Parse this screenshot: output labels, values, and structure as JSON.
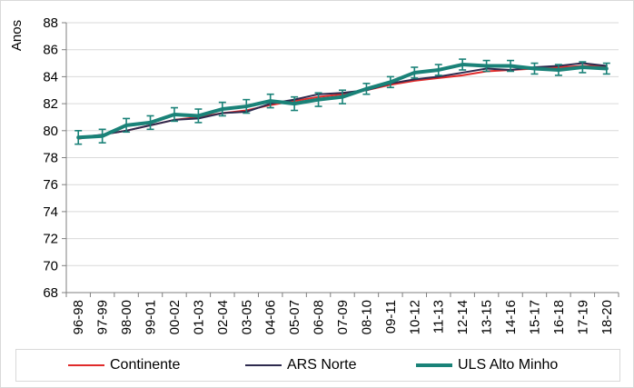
{
  "chart_data": {
    "type": "line",
    "title": "",
    "xlabel": "",
    "ylabel": "Anos",
    "ylim": [
      68,
      88
    ],
    "yticks": [
      68,
      70,
      72,
      74,
      76,
      78,
      80,
      82,
      84,
      86,
      88
    ],
    "grid": "horizontal",
    "legend": "bottom",
    "categories": [
      "96-98",
      "97-99",
      "98-00",
      "99-01",
      "00-02",
      "01-03",
      "02-04",
      "03-05",
      "04-06",
      "05-07",
      "06-08",
      "07-09",
      "08-10",
      "09-11",
      "10-12",
      "11-13",
      "12-14",
      "13-15",
      "14-16",
      "15-17",
      "16-18",
      "17-19",
      "18-20"
    ],
    "series": [
      {
        "name": "Continente",
        "color": "#e02b2b",
        "values": [
          79.4,
          79.7,
          80.0,
          80.4,
          80.8,
          81.0,
          81.3,
          81.5,
          81.9,
          82.2,
          82.5,
          82.7,
          83.0,
          83.4,
          83.7,
          83.9,
          84.1,
          84.4,
          84.5,
          84.6,
          84.7,
          84.8,
          84.8
        ]
      },
      {
        "name": "ARS Norte",
        "color": "#2e2b4f",
        "values": [
          79.5,
          79.7,
          80.0,
          80.4,
          80.8,
          80.9,
          81.3,
          81.4,
          82.0,
          82.3,
          82.7,
          82.8,
          83.0,
          83.5,
          83.8,
          84.0,
          84.3,
          84.6,
          84.5,
          84.7,
          84.8,
          85.0,
          84.8
        ]
      },
      {
        "name": "ULS Alto Minho",
        "color": "#1a8278",
        "values": [
          79.5,
          79.6,
          80.4,
          80.6,
          81.2,
          81.1,
          81.6,
          81.8,
          82.2,
          82.0,
          82.3,
          82.5,
          83.1,
          83.6,
          84.3,
          84.5,
          84.9,
          84.8,
          84.8,
          84.6,
          84.5,
          84.7,
          84.6
        ],
        "error_low": [
          79.0,
          79.1,
          79.9,
          80.1,
          80.7,
          80.6,
          81.1,
          81.3,
          81.7,
          81.5,
          81.8,
          82.0,
          82.7,
          83.2,
          83.9,
          84.1,
          84.5,
          84.4,
          84.4,
          84.2,
          84.1,
          84.3,
          84.2
        ],
        "error_high": [
          80.0,
          80.1,
          80.9,
          81.1,
          81.7,
          81.6,
          82.1,
          82.3,
          82.7,
          82.5,
          82.8,
          83.0,
          83.5,
          84.0,
          84.7,
          84.9,
          85.3,
          85.2,
          85.2,
          85.0,
          84.9,
          85.1,
          85.0
        ]
      }
    ]
  }
}
